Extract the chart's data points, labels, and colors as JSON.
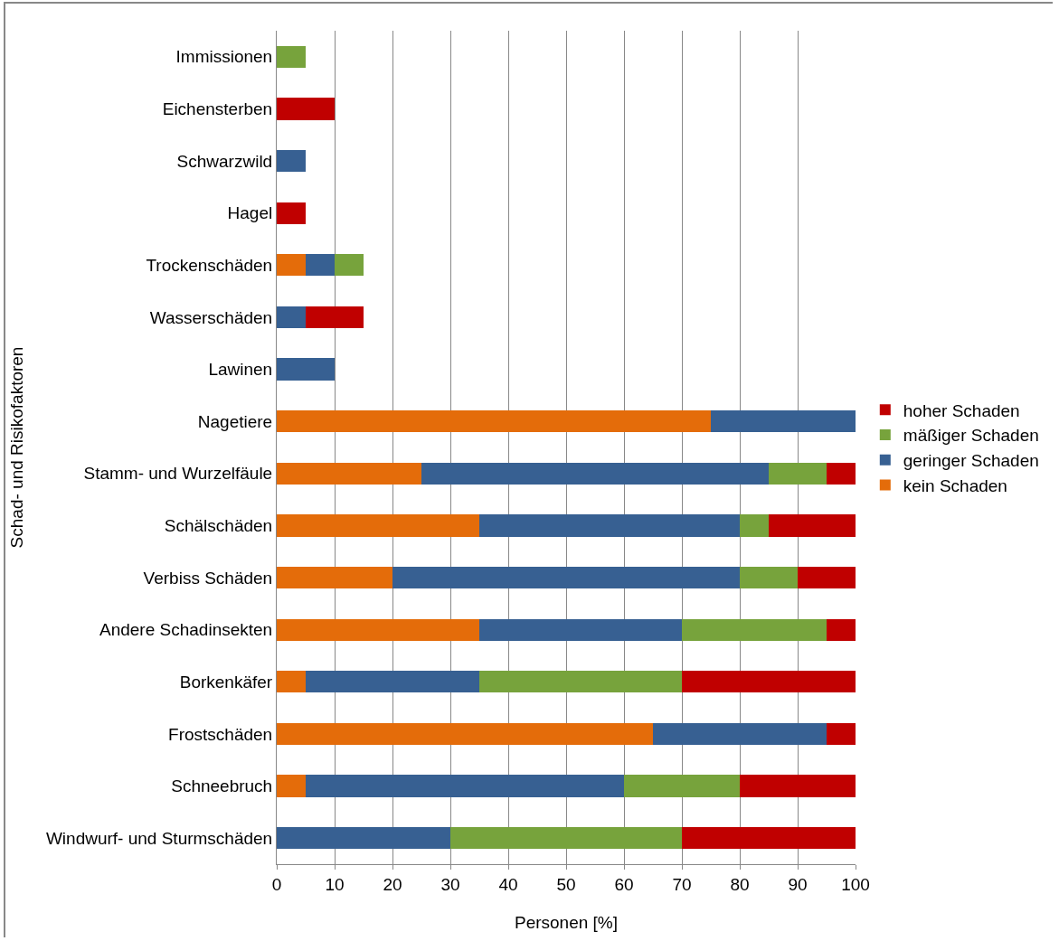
{
  "chart_data": {
    "type": "bar",
    "orientation": "horizontal",
    "stacked": true,
    "xlabel": "Personen [%]",
    "ylabel": "Schad- und Risikofaktoren",
    "categories": [
      "Immissionen",
      "Eichensterben",
      "Schwarzwild",
      "Hagel",
      "Trockenschäden",
      "Wasserschäden",
      "Lawinen",
      "Nagetiere",
      "Stamm- und Wurzelfäule",
      "Schälschäden",
      "Verbiss Schäden",
      "Andere Schadinsekten",
      "Borkenkäfer",
      "Frostschäden",
      "Schneebruch",
      "Windwurf- und Sturmschäden"
    ],
    "series": [
      {
        "name": "kein Schaden",
        "color": "#e46c0a",
        "values": [
          null,
          null,
          null,
          null,
          5,
          null,
          null,
          75,
          25,
          35,
          20,
          35,
          5,
          65,
          5,
          null
        ]
      },
      {
        "name": "geringer Schaden",
        "color": "#376092",
        "values": [
          null,
          null,
          5,
          null,
          5,
          5,
          10,
          25,
          60,
          45,
          60,
          35,
          30,
          30,
          55,
          30
        ]
      },
      {
        "name": "mäßiger Schaden",
        "color": "#77a33c",
        "values": [
          5,
          null,
          null,
          null,
          5,
          null,
          null,
          null,
          10,
          5,
          10,
          25,
          35,
          null,
          20,
          40
        ]
      },
      {
        "name": "hoher Schaden",
        "color": "#c00000",
        "values": [
          null,
          10,
          null,
          5,
          null,
          10,
          null,
          null,
          5,
          15,
          10,
          5,
          30,
          5,
          20,
          30
        ]
      }
    ],
    "xlim": [
      0,
      100
    ],
    "xticks": [
      0,
      10,
      20,
      30,
      40,
      50,
      60,
      70,
      80,
      90,
      100
    ],
    "grid": "x",
    "legend": "right"
  }
}
